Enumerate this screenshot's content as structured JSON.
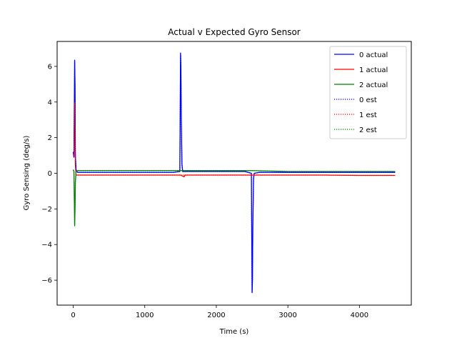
{
  "chart_data": {
    "type": "line",
    "title": "Actual v Expected Gyro Sensor",
    "xlabel": "Time (s)",
    "ylabel": "Gyro Sensing (deg/s)",
    "xlim": [
      -225,
      4725
    ],
    "ylim": [
      -7.4,
      7.4
    ],
    "xticks": [
      0,
      1000,
      2000,
      3000,
      4000
    ],
    "yticks": [
      -6,
      -4,
      -2,
      0,
      2,
      4,
      6
    ],
    "xtick_labels": [
      "0",
      "1000",
      "2000",
      "3000",
      "4000"
    ],
    "ytick_labels": [
      "−6",
      "−4",
      "−2",
      "0",
      "2",
      "4",
      "6"
    ],
    "grid": false,
    "legend_position": "top-right",
    "series": [
      {
        "name": "0 actual",
        "color": "#0000ff",
        "style": "solid",
        "x": [
          0,
          10,
          20,
          25,
          30,
          40,
          60,
          100,
          500,
          1000,
          1400,
          1490,
          1500,
          1505,
          1510,
          1520,
          1530,
          1600,
          2000,
          2400,
          2490,
          2500,
          2505,
          2510,
          2520,
          2530,
          2600,
          3000,
          3500,
          4000,
          4500
        ],
        "y": [
          1.2,
          0.9,
          6.35,
          5.0,
          1.0,
          0.2,
          0.05,
          0.05,
          0.05,
          0.05,
          0.05,
          0.1,
          6.75,
          6.0,
          3.0,
          0.5,
          0.1,
          0.1,
          0.1,
          0.1,
          0.0,
          -6.7,
          -6.0,
          -3.0,
          -0.3,
          0.0,
          0.05,
          0.05,
          0.05,
          0.05,
          0.05
        ]
      },
      {
        "name": "1 actual",
        "color": "#ff0000",
        "style": "solid",
        "x": [
          0,
          10,
          20,
          25,
          30,
          40,
          60,
          100,
          500,
          1000,
          1500,
          1550,
          1560,
          1600,
          2000,
          2500,
          3000,
          3500,
          4000,
          4500
        ],
        "y": [
          1.1,
          1.0,
          4.0,
          2.5,
          0.5,
          -0.1,
          -0.1,
          -0.1,
          -0.1,
          -0.1,
          -0.1,
          -0.2,
          -0.1,
          -0.1,
          -0.1,
          -0.1,
          -0.1,
          -0.1,
          -0.12,
          -0.12
        ]
      },
      {
        "name": "2 actual",
        "color": "#008000",
        "style": "solid",
        "x": [
          0,
          10,
          20,
          25,
          30,
          40,
          60,
          100,
          500,
          1000,
          1500,
          2000,
          2500,
          3000,
          3500,
          4000,
          4500
        ],
        "y": [
          0.2,
          0.1,
          -2.95,
          -2.0,
          -0.5,
          0.1,
          0.15,
          0.15,
          0.15,
          0.15,
          0.15,
          0.15,
          0.15,
          0.1,
          0.1,
          0.1,
          0.1
        ]
      },
      {
        "name": "0 est",
        "color": "#0000ff",
        "style": "dotted",
        "x": [
          0,
          10,
          20,
          25,
          30,
          40,
          60,
          100,
          500,
          1000,
          1400,
          1490,
          1500,
          1505,
          1510,
          1520,
          1530,
          1600,
          2000,
          2400,
          2490,
          2500,
          2505,
          2510,
          2520,
          2530,
          2600,
          3000,
          3500,
          4000,
          4500
        ],
        "y": [
          1.2,
          0.9,
          6.3,
          5.0,
          1.0,
          0.2,
          0.05,
          0.05,
          0.05,
          0.05,
          0.05,
          0.1,
          6.7,
          6.0,
          3.0,
          0.5,
          0.1,
          0.1,
          0.1,
          0.1,
          0.0,
          -6.65,
          -6.0,
          -3.0,
          -0.3,
          0.0,
          0.05,
          0.05,
          0.05,
          0.05,
          0.05
        ]
      },
      {
        "name": "1 est",
        "color": "#ff0000",
        "style": "dotted",
        "x": [
          0,
          10,
          20,
          25,
          30,
          40,
          60,
          100,
          500,
          1000,
          1500,
          2000,
          2500,
          3000,
          3500,
          4000,
          4500
        ],
        "y": [
          1.1,
          1.0,
          3.95,
          2.5,
          0.5,
          -0.1,
          -0.1,
          -0.1,
          -0.1,
          -0.1,
          -0.1,
          -0.1,
          -0.1,
          -0.1,
          -0.1,
          -0.12,
          -0.12
        ]
      },
      {
        "name": "2 est",
        "color": "#008000",
        "style": "dotted",
        "x": [
          0,
          10,
          20,
          25,
          30,
          40,
          60,
          100,
          500,
          1000,
          1500,
          2000,
          2500,
          3000,
          3500,
          4000,
          4500
        ],
        "y": [
          0.2,
          0.1,
          -2.9,
          -2.0,
          -0.5,
          0.1,
          0.15,
          0.15,
          0.15,
          0.15,
          0.15,
          0.15,
          0.15,
          0.1,
          0.1,
          0.1,
          0.1
        ]
      }
    ]
  }
}
